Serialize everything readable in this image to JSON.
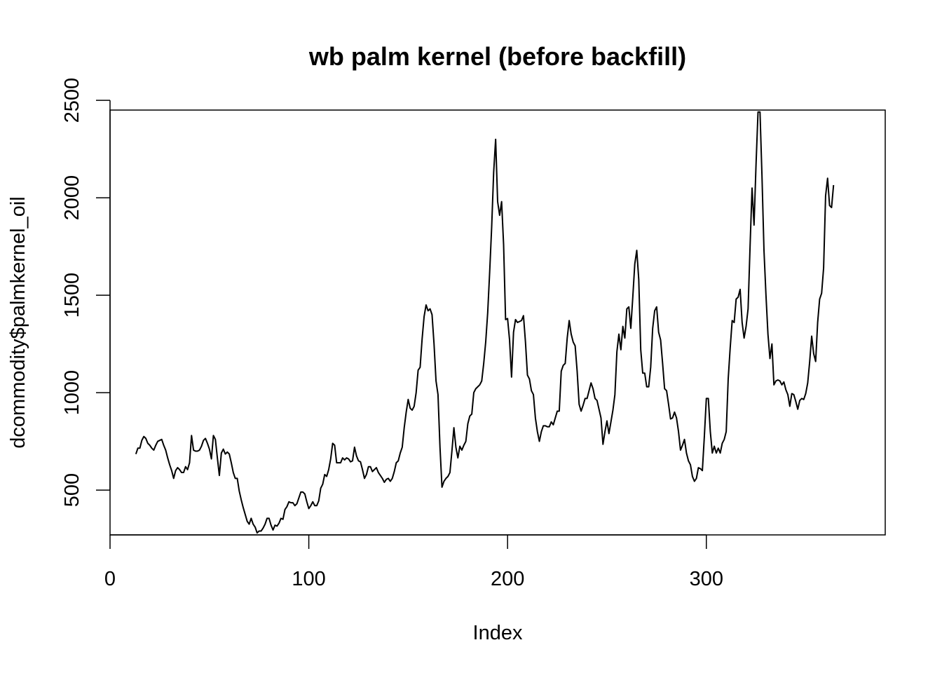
{
  "chart_data": {
    "type": "line",
    "title": "wb palm kernel (before backfill)",
    "xlabel": "Index",
    "ylabel": "dcommodity$palmkernel_oil",
    "xlim": [
      0,
      390
    ],
    "ylim": [
      270,
      2450
    ],
    "xticks": [
      0,
      100,
      200,
      300
    ],
    "yticks": [
      500,
      1000,
      1500,
      2000,
      2500
    ],
    "xtick_labels": [
      "0",
      "100",
      "200",
      "300"
    ],
    "ytick_labels": [
      "500",
      "1000",
      "1500",
      "2000",
      "2500"
    ],
    "grid": false,
    "legend": "none",
    "color": "#000000",
    "series": [
      {
        "x_start": 13,
        "values": [
          685,
          715,
          715,
          755,
          775,
          765,
          740,
          730,
          715,
          705,
          730,
          750,
          755,
          760,
          730,
          705,
          665,
          630,
          600,
          560,
          600,
          615,
          605,
          590,
          590,
          620,
          605,
          640,
          780,
          705,
          700,
          700,
          705,
          725,
          755,
          765,
          740,
          710,
          660,
          780,
          760,
          665,
          575,
          690,
          710,
          685,
          695,
          685,
          640,
          590,
          560,
          560,
          495,
          450,
          410,
          375,
          340,
          325,
          355,
          325,
          310,
          280,
          290,
          290,
          305,
          325,
          355,
          355,
          320,
          295,
          320,
          315,
          330,
          355,
          350,
          400,
          415,
          440,
          435,
          435,
          420,
          430,
          460,
          490,
          490,
          480,
          440,
          405,
          420,
          440,
          420,
          420,
          445,
          510,
          530,
          580,
          570,
          605,
          660,
          740,
          730,
          640,
          640,
          640,
          665,
          655,
          665,
          660,
          645,
          650,
          720,
          675,
          650,
          645,
          605,
          560,
          580,
          620,
          620,
          595,
          605,
          615,
          590,
          575,
          560,
          540,
          555,
          560,
          545,
          560,
          595,
          640,
          650,
          690,
          720,
          820,
          900,
          965,
          920,
          910,
          930,
          1000,
          1115,
          1130,
          1275,
          1390,
          1450,
          1420,
          1430,
          1400,
          1250,
          1060,
          990,
          720,
          515,
          545,
          560,
          570,
          590,
          700,
          820,
          720,
          665,
          725,
          705,
          730,
          750,
          840,
          880,
          890,
          1000,
          1020,
          1030,
          1040,
          1060,
          1150,
          1260,
          1410,
          1620,
          1850,
          2130,
          2300,
          1980,
          1910,
          1980,
          1760,
          1375,
          1380,
          1270,
          1080,
          1310,
          1375,
          1360,
          1365,
          1370,
          1395,
          1260,
          1090,
          1070,
          1010,
          990,
          870,
          800,
          750,
          800,
          830,
          830,
          825,
          825,
          850,
          835,
          870,
          905,
          905,
          1110,
          1140,
          1150,
          1280,
          1370,
          1300,
          1260,
          1240,
          1110,
          940,
          905,
          935,
          970,
          970,
          1010,
          1050,
          1020,
          970,
          960,
          915,
          870,
          735,
          800,
          855,
          790,
          850,
          910,
          990,
          1210,
          1300,
          1220,
          1340,
          1280,
          1430,
          1440,
          1330,
          1490,
          1660,
          1730,
          1580,
          1220,
          1100,
          1100,
          1030,
          1030,
          1130,
          1330,
          1420,
          1440,
          1310,
          1270,
          1150,
          1020,
          1010,
          940,
          865,
          870,
          900,
          870,
          800,
          705,
          730,
          760,
          690,
          650,
          630,
          570,
          545,
          560,
          615,
          610,
          600,
          775,
          970,
          970,
          800,
          690,
          725,
          690,
          715,
          690,
          740,
          760,
          800,
          1070,
          1230,
          1370,
          1360,
          1480,
          1490,
          1530,
          1360,
          1280,
          1340,
          1430,
          1750,
          2050,
          1860,
          2170,
          2440,
          2440,
          2110,
          1730,
          1500,
          1300,
          1175,
          1250,
          1040,
          1060,
          1065,
          1060,
          1040,
          1055,
          1015,
          990,
          930,
          995,
          990,
          955,
          915,
          960,
          970,
          965,
          995,
          1050,
          1160,
          1290,
          1200,
          1160,
          1360,
          1480,
          1510,
          1640,
          2010,
          2100,
          1960,
          1950,
          2065
        ]
      }
    ]
  }
}
